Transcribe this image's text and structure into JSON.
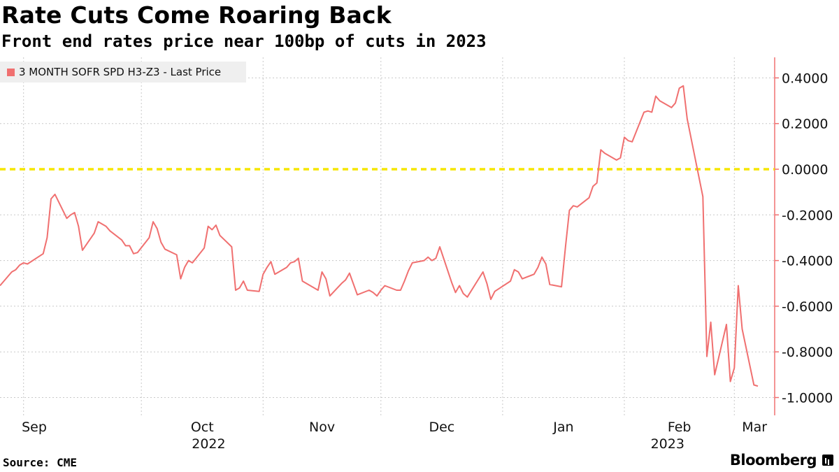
{
  "header": {
    "title": "Rate Cuts Come Roaring Back",
    "subtitle": "Front end rates price near 100bp of cuts in 2023"
  },
  "footer": {
    "source": "Source: CME",
    "brand": "Bloomberg"
  },
  "colors": {
    "series": "#f07070",
    "zero_line": "#f5e600",
    "grid": "#c8c8c8",
    "axis": "#f07070",
    "legend_bg": "#efefef"
  },
  "chart_data": {
    "type": "line",
    "title": "Rate Cuts Come Roaring Back",
    "subtitle": "Front end rates price near 100bp of cuts in 2023",
    "ylim": [
      -1.08,
      0.5
    ],
    "y_ticks": [
      "0.4000",
      "0.2000",
      "0.0000",
      "-0.2000",
      "-0.4000",
      "-0.6000",
      "-0.8000",
      "-1.0000"
    ],
    "x_months": [
      "Sep",
      "Oct",
      "Nov",
      "Dec",
      "Jan",
      "Feb",
      "Mar"
    ],
    "x_years": [
      "2022",
      "2023"
    ],
    "grid": true,
    "reference_line": 0.0,
    "legend_position": "top-left",
    "series": [
      {
        "name": "3 MONTH SOFR SPD H3-Z3 - Last Price",
        "points": [
          [
            "2022-08-26",
            -0.51
          ],
          [
            "2022-08-29",
            -0.45
          ],
          [
            "2022-08-30",
            -0.44
          ],
          [
            "2022-08-31",
            -0.42
          ],
          [
            "2022-09-01",
            -0.41
          ],
          [
            "2022-09-02",
            -0.415
          ],
          [
            "2022-09-06",
            -0.37
          ],
          [
            "2022-09-07",
            -0.3
          ],
          [
            "2022-09-08",
            -0.13
          ],
          [
            "2022-09-09",
            -0.11
          ],
          [
            "2022-09-12",
            -0.215
          ],
          [
            "2022-09-13",
            -0.2
          ],
          [
            "2022-09-14",
            -0.19
          ],
          [
            "2022-09-15",
            -0.25
          ],
          [
            "2022-09-16",
            -0.355
          ],
          [
            "2022-09-19",
            -0.28
          ],
          [
            "2022-09-20",
            -0.23
          ],
          [
            "2022-09-21",
            -0.24
          ],
          [
            "2022-09-22",
            -0.25
          ],
          [
            "2022-09-23",
            -0.27
          ],
          [
            "2022-09-26",
            -0.31
          ],
          [
            "2022-09-27",
            -0.335
          ],
          [
            "2022-09-28",
            -0.335
          ],
          [
            "2022-09-29",
            -0.37
          ],
          [
            "2022-09-30",
            -0.365
          ],
          [
            "2022-10-03",
            -0.3
          ],
          [
            "2022-10-04",
            -0.23
          ],
          [
            "2022-10-05",
            -0.26
          ],
          [
            "2022-10-06",
            -0.32
          ],
          [
            "2022-10-07",
            -0.35
          ],
          [
            "2022-10-10",
            -0.375
          ],
          [
            "2022-10-11",
            -0.48
          ],
          [
            "2022-10-12",
            -0.43
          ],
          [
            "2022-10-13",
            -0.4
          ],
          [
            "2022-10-14",
            -0.41
          ],
          [
            "2022-10-17",
            -0.345
          ],
          [
            "2022-10-18",
            -0.25
          ],
          [
            "2022-10-19",
            -0.265
          ],
          [
            "2022-10-20",
            -0.245
          ],
          [
            "2022-10-21",
            -0.29
          ],
          [
            "2022-10-24",
            -0.34
          ],
          [
            "2022-10-25",
            -0.53
          ],
          [
            "2022-10-26",
            -0.52
          ],
          [
            "2022-10-27",
            -0.49
          ],
          [
            "2022-10-28",
            -0.53
          ],
          [
            "2022-10-31",
            -0.535
          ],
          [
            "2022-11-01",
            -0.46
          ],
          [
            "2022-11-02",
            -0.43
          ],
          [
            "2022-11-03",
            -0.405
          ],
          [
            "2022-11-04",
            -0.46
          ],
          [
            "2022-11-07",
            -0.43
          ],
          [
            "2022-11-08",
            -0.41
          ],
          [
            "2022-11-09",
            -0.405
          ],
          [
            "2022-11-10",
            -0.39
          ],
          [
            "2022-11-11",
            -0.49
          ],
          [
            "2022-11-14",
            -0.52
          ],
          [
            "2022-11-15",
            -0.53
          ],
          [
            "2022-11-16",
            -0.45
          ],
          [
            "2022-11-17",
            -0.48
          ],
          [
            "2022-11-18",
            -0.555
          ],
          [
            "2022-11-21",
            -0.5
          ],
          [
            "2022-11-22",
            -0.485
          ],
          [
            "2022-11-23",
            -0.455
          ],
          [
            "2022-11-25",
            -0.55
          ],
          [
            "2022-11-28",
            -0.53
          ],
          [
            "2022-11-29",
            -0.54
          ],
          [
            "2022-11-30",
            -0.555
          ],
          [
            "2022-12-01",
            -0.53
          ],
          [
            "2022-12-02",
            -0.51
          ],
          [
            "2022-12-05",
            -0.53
          ],
          [
            "2022-12-06",
            -0.53
          ],
          [
            "2022-12-07",
            -0.49
          ],
          [
            "2022-12-08",
            -0.445
          ],
          [
            "2022-12-09",
            -0.41
          ],
          [
            "2022-12-12",
            -0.4
          ],
          [
            "2022-12-13",
            -0.385
          ],
          [
            "2022-12-14",
            -0.4
          ],
          [
            "2022-12-15",
            -0.39
          ],
          [
            "2022-12-16",
            -0.34
          ],
          [
            "2022-12-19",
            -0.495
          ],
          [
            "2022-12-20",
            -0.54
          ],
          [
            "2022-12-21",
            -0.51
          ],
          [
            "2022-12-22",
            -0.545
          ],
          [
            "2022-12-23",
            -0.56
          ],
          [
            "2022-12-27",
            -0.45
          ],
          [
            "2022-12-28",
            -0.5
          ],
          [
            "2022-12-29",
            -0.57
          ],
          [
            "2022-12-30",
            -0.535
          ],
          [
            "2023-01-03",
            -0.49
          ],
          [
            "2023-01-04",
            -0.44
          ],
          [
            "2023-01-05",
            -0.45
          ],
          [
            "2023-01-06",
            -0.48
          ],
          [
            "2023-01-09",
            -0.46
          ],
          [
            "2023-01-10",
            -0.43
          ],
          [
            "2023-01-11",
            -0.385
          ],
          [
            "2023-01-12",
            -0.415
          ],
          [
            "2023-01-13",
            -0.505
          ],
          [
            "2023-01-16",
            -0.515
          ],
          [
            "2023-01-17",
            -0.34
          ],
          [
            "2023-01-18",
            -0.18
          ],
          [
            "2023-01-19",
            -0.16
          ],
          [
            "2023-01-20",
            -0.165
          ],
          [
            "2023-01-23",
            -0.125
          ],
          [
            "2023-01-24",
            -0.075
          ],
          [
            "2023-01-25",
            -0.06
          ],
          [
            "2023-01-26",
            0.085
          ],
          [
            "2023-01-27",
            0.07
          ],
          [
            "2023-01-30",
            0.04
          ],
          [
            "2023-01-31",
            0.05
          ],
          [
            "2023-02-01",
            0.14
          ],
          [
            "2023-02-02",
            0.125
          ],
          [
            "2023-02-03",
            0.12
          ],
          [
            "2023-02-06",
            0.25
          ],
          [
            "2023-02-07",
            0.255
          ],
          [
            "2023-02-08",
            0.25
          ],
          [
            "2023-02-09",
            0.32
          ],
          [
            "2023-02-10",
            0.3
          ],
          [
            "2023-02-13",
            0.27
          ],
          [
            "2023-02-14",
            0.29
          ],
          [
            "2023-02-15",
            0.355
          ],
          [
            "2023-02-16",
            0.365
          ],
          [
            "2023-02-17",
            0.22
          ],
          [
            "2023-02-21",
            -0.12
          ],
          [
            "2023-02-22",
            -0.82
          ],
          [
            "2023-02-23",
            -0.67
          ],
          [
            "2023-02-24",
            -0.9
          ],
          [
            "2023-02-27",
            -0.68
          ],
          [
            "2023-02-28",
            -0.93
          ],
          [
            "2023-03-01",
            -0.87
          ],
          [
            "2023-03-02",
            -0.51
          ],
          [
            "2023-03-03",
            -0.7
          ],
          [
            "2023-03-06",
            -0.945
          ],
          [
            "2023-03-07",
            -0.95
          ]
        ]
      }
    ]
  }
}
